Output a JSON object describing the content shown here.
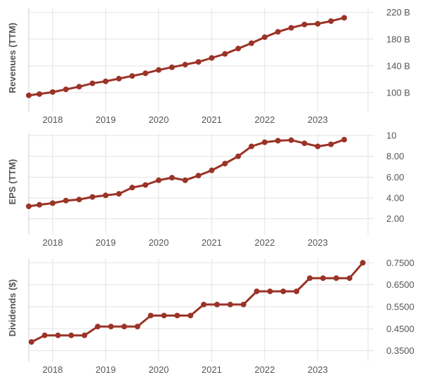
{
  "colors": {
    "series": "#9b3327",
    "grid": "#e3e3e3",
    "text": "#555555"
  },
  "chart_data": [
    {
      "type": "line",
      "ylabel": "Revenues (TTM)",
      "xlim": [
        2017.55,
        2023.95
      ],
      "ylim": [
        78,
        226
      ],
      "x_ticks": [
        2018,
        2019,
        2020,
        2021,
        2022,
        2023
      ],
      "x_tick_labels": [
        "2018",
        "2019",
        "2020",
        "2021",
        "2022",
        "2023"
      ],
      "y_ticks": [
        100,
        140,
        180,
        220
      ],
      "y_tick_labels": [
        "100 B",
        "140 B",
        "180 B",
        "220 B"
      ],
      "x": [
        2017.55,
        2017.75,
        2018.0,
        2018.25,
        2018.5,
        2018.75,
        2019.0,
        2019.25,
        2019.5,
        2019.75,
        2020.0,
        2020.25,
        2020.5,
        2020.75,
        2021.0,
        2021.25,
        2021.5,
        2021.75,
        2022.0,
        2022.25,
        2022.5,
        2022.75,
        2023.0,
        2023.25,
        2023.5
      ],
      "values": [
        96,
        98,
        101,
        105,
        109,
        114,
        117,
        121,
        125,
        129,
        134,
        138,
        142,
        146,
        152,
        158,
        166,
        174,
        183,
        191,
        197,
        202,
        203,
        207,
        212
      ]
    },
    {
      "type": "line",
      "ylabel": "EPS (TTM)",
      "xlim": [
        2017.55,
        2023.95
      ],
      "ylim": [
        0.9,
        10.2
      ],
      "x_ticks": [
        2018,
        2019,
        2020,
        2021,
        2022,
        2023
      ],
      "x_tick_labels": [
        "2018",
        "2019",
        "2020",
        "2021",
        "2022",
        "2023"
      ],
      "y_ticks": [
        2,
        4,
        6,
        8,
        10
      ],
      "y_tick_labels": [
        "2.00",
        "4.00",
        "6.00",
        "8.00",
        "10"
      ],
      "x": [
        2017.55,
        2017.75,
        2018.0,
        2018.25,
        2018.5,
        2018.75,
        2019.0,
        2019.25,
        2019.5,
        2019.75,
        2020.0,
        2020.25,
        2020.5,
        2020.75,
        2021.0,
        2021.25,
        2021.5,
        2021.75,
        2022.0,
        2022.25,
        2022.5,
        2022.75,
        2023.0,
        2023.25,
        2023.5
      ],
      "values": [
        3.2,
        3.35,
        3.5,
        3.75,
        3.85,
        4.1,
        4.25,
        4.4,
        5.0,
        5.25,
        5.7,
        5.95,
        5.7,
        6.15,
        6.65,
        7.3,
        8.0,
        8.95,
        9.35,
        9.5,
        9.55,
        9.25,
        8.95,
        9.15,
        9.6
      ]
    },
    {
      "type": "line",
      "ylabel": "Dividends ($)",
      "xlim": [
        2017.55,
        2023.95
      ],
      "ylim": [
        0.32,
        0.77
      ],
      "x_ticks": [
        2018,
        2019,
        2020,
        2021,
        2022,
        2023
      ],
      "x_tick_labels": [
        "2018",
        "2019",
        "2020",
        "2021",
        "2022",
        "2023"
      ],
      "y_ticks": [
        0.35,
        0.45,
        0.55,
        0.65,
        0.75
      ],
      "y_tick_labels": [
        "0.3500",
        "0.4500",
        "0.5500",
        "0.6500",
        "0.7500"
      ],
      "x": [
        2017.6,
        2017.85,
        2018.1,
        2018.35,
        2018.6,
        2018.85,
        2019.1,
        2019.35,
        2019.6,
        2019.85,
        2020.1,
        2020.35,
        2020.6,
        2020.85,
        2021.1,
        2021.35,
        2021.6,
        2021.85,
        2022.1,
        2022.35,
        2022.6,
        2022.85,
        2023.1,
        2023.35,
        2023.6,
        2023.85
      ],
      "values": [
        0.39,
        0.42,
        0.42,
        0.42,
        0.42,
        0.46,
        0.46,
        0.46,
        0.46,
        0.51,
        0.51,
        0.51,
        0.51,
        0.56,
        0.56,
        0.56,
        0.56,
        0.62,
        0.62,
        0.62,
        0.62,
        0.68,
        0.68,
        0.68,
        0.68,
        0.75
      ]
    }
  ]
}
